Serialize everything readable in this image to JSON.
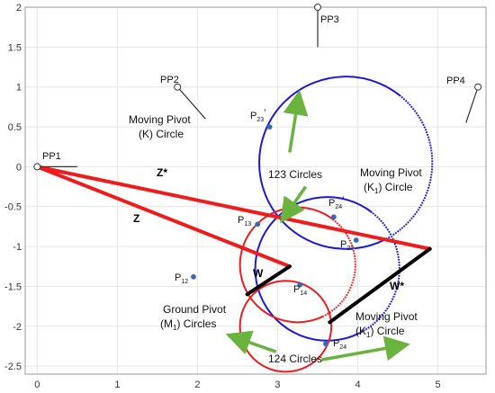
{
  "chart_data": {
    "type": "diagram",
    "xlim": [
      -0.15,
      5.6
    ],
    "ylim": [
      -2.6,
      2.0
    ],
    "x_ticks": [
      "0",
      "1",
      "2",
      "3",
      "4",
      "5"
    ],
    "y_ticks": [
      "2",
      "1.5",
      "1",
      "0.5",
      "0",
      "-0.5",
      "-1",
      "-1.5",
      "-2",
      "-2.5"
    ],
    "grid": true,
    "colors": {
      "red": "#ee1c1c",
      "blue": "#1a1ad6",
      "green": "#6ab33e",
      "black": "#000000",
      "point": "#1f77b4"
    },
    "circles": [
      {
        "name": "Moving Pivot (K) Circle",
        "cx": 3.85,
        "cy": 0.05,
        "r": 1.08,
        "color": "blue",
        "dotted_arc": true
      },
      {
        "name": "Moving Pivot (K1) Circle upper",
        "cx": 3.62,
        "cy": -1.28,
        "r": 0.9,
        "color": "blue",
        "dotted_arc": true
      },
      {
        "name": "Ground Pivot (M1) Circle upper",
        "cx": 3.25,
        "cy": -1.23,
        "r": 0.72,
        "color": "red",
        "dotted_arc": true
      },
      {
        "name": "Ground Pivot (M1) Circle lower",
        "cx": 3.1,
        "cy": -2.0,
        "r": 0.57,
        "color": "red",
        "dotted_arc": false
      }
    ],
    "links": [
      {
        "name": "Z*",
        "from": [
          0,
          0
        ],
        "to": [
          4.9,
          -1.03
        ],
        "color": "red"
      },
      {
        "name": "Z",
        "from": [
          0,
          0
        ],
        "to": [
          3.15,
          -1.25
        ],
        "color": "red"
      },
      {
        "name": "W",
        "from": [
          2.62,
          -1.6
        ],
        "to": [
          3.15,
          -1.25
        ],
        "color": "black"
      },
      {
        "name": "W*",
        "from": [
          3.65,
          -1.95
        ],
        "to": [
          4.9,
          -1.03
        ],
        "color": "black"
      }
    ],
    "pivot_lines": [
      {
        "from": [
          0,
          0
        ],
        "to": [
          0.5,
          0
        ]
      },
      {
        "from": [
          1.75,
          1.0
        ],
        "to": [
          2.1,
          0.6
        ]
      },
      {
        "from": [
          3.5,
          2.0
        ],
        "to": [
          3.5,
          1.5
        ]
      },
      {
        "from": [
          5.5,
          1.0
        ],
        "to": [
          5.35,
          0.55
        ]
      }
    ],
    "points": [
      {
        "name": "P12",
        "x": 1.95,
        "y": -1.38
      },
      {
        "name": "P13",
        "x": 2.75,
        "y": -0.72
      },
      {
        "name": "P23_prime",
        "x": 2.9,
        "y": 0.5
      },
      {
        "name": "P24_prime",
        "x": 3.7,
        "y": -0.63
      },
      {
        "name": "P23",
        "x": 3.98,
        "y": -0.92
      },
      {
        "name": "P14",
        "x": 3.28,
        "y": -1.48
      },
      {
        "name": "P24",
        "x": 3.6,
        "y": -2.22
      }
    ],
    "arrows": [
      {
        "from": [
          3.15,
          0.18
        ],
        "to": [
          3.25,
          0.81
        ]
      },
      {
        "from": [
          3.35,
          -0.25
        ],
        "to": [
          3.12,
          -0.58
        ]
      },
      {
        "from": [
          2.98,
          -2.32
        ],
        "to": [
          2.5,
          -2.15
        ]
      },
      {
        "from": [
          3.55,
          -2.42
        ],
        "to": [
          4.5,
          -2.25
        ]
      }
    ]
  },
  "labels": {
    "pp1": "PP1",
    "pp2": "PP2",
    "pp3": "PP3",
    "pp4": "PP4",
    "moving_k_1": "Moving Pivot",
    "moving_k_2": "(K) Circle",
    "circles_123": "123 Circles",
    "moving_k1_top_1": "Moving Pivot",
    "moving_k1_top_2": "(K",
    "moving_k1_top_sub": "1",
    "moving_k1_top_3": ") Circle",
    "z_star": "Z*",
    "z": "Z",
    "w": "W",
    "w_star": "W*",
    "p13": "P",
    "p13_sub": "13",
    "p23p": "P",
    "p23p_sub": "23",
    "p23p_mark": "’",
    "p24p": "P",
    "p24p_sub": "24",
    "p24p_mark": "’",
    "p23": "P",
    "p23_sub": "23",
    "p12": "P",
    "p12_sub": "12",
    "p14": "P",
    "p14_sub": "14",
    "p24": "P",
    "p24_sub": "24",
    "ground_1": "Ground Pivot",
    "ground_2": "(M",
    "ground_sub": "1",
    "ground_3": ") Circles",
    "moving_k1_bot_1": "Moving Pivot",
    "moving_k1_bot_2": "(K",
    "moving_k1_bot_sub": "1",
    "moving_k1_bot_3": ") Circle",
    "circles_124": "124 Circles"
  }
}
